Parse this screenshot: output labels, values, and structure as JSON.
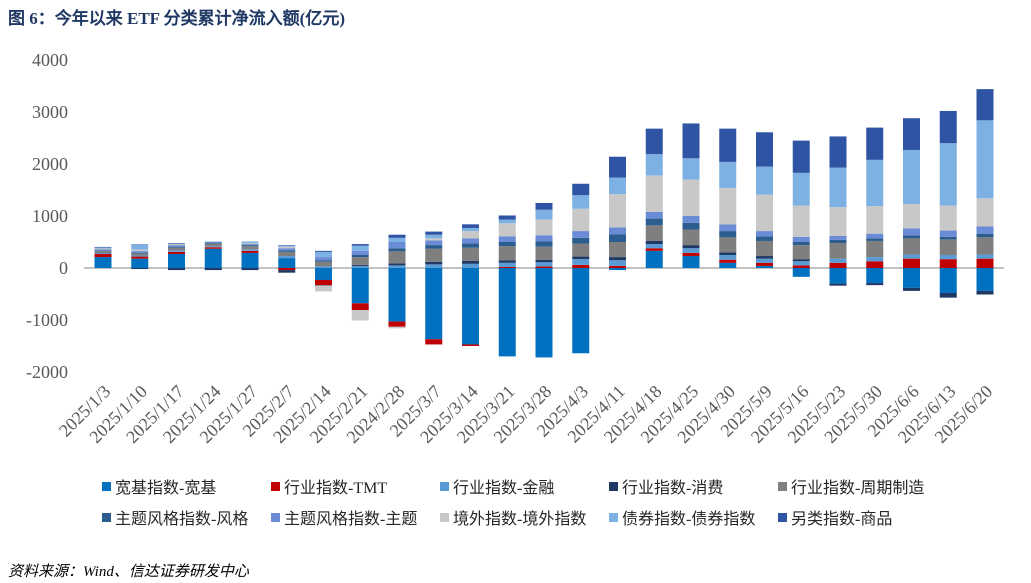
{
  "chart_data": {
    "type": "bar",
    "stacked": true,
    "title": "图 6：今年以来 ETF 分类累计净流入额(亿元)",
    "ylim": [
      -2000,
      4000
    ],
    "yticks": [
      4000,
      3000,
      2000,
      1000,
      0,
      -1000,
      -2000
    ],
    "grid": false,
    "legend_position": "bottom",
    "categories": [
      "2025/1/3",
      "2025/1/10",
      "2025/1/17",
      "2025/1/24",
      "2025/1/27",
      "2025/2/7",
      "2025/2/14",
      "2025/2/21",
      "2024/2/28",
      "2025/3/7",
      "2025/3/14",
      "2025/3/21",
      "2025/3/28",
      "2025/4/3",
      "2025/4/11",
      "2025/4/18",
      "2025/4/25",
      "2025/4/30",
      "2025/5/9",
      "2025/5/16",
      "2025/5/23",
      "2025/5/30",
      "2025/6/6",
      "2025/6/13",
      "2025/6/20"
    ],
    "series": [
      {
        "name": "宽基指数-宽基",
        "color": "#0070C0",
        "values": [
          210,
          180,
          270,
          370,
          290,
          190,
          -230,
          -680,
          -1030,
          -1370,
          -1470,
          -1700,
          -1720,
          -1640,
          -40,
          330,
          230,
          100,
          40,
          -170,
          -300,
          -290,
          -380,
          -480,
          -440
        ]
      },
      {
        "name": "行业指数-TMT",
        "color": "#C00000",
        "values": [
          60,
          40,
          40,
          30,
          40,
          -40,
          -100,
          -130,
          -100,
          -100,
          -30,
          20,
          30,
          60,
          40,
          50,
          60,
          60,
          60,
          50,
          100,
          130,
          180,
          170,
          180
        ]
      },
      {
        "name": "行业指数-金融",
        "color": "#5B9BD5",
        "values": [
          15,
          20,
          30,
          20,
          30,
          40,
          30,
          40,
          50,
          70,
          80,
          80,
          80,
          110,
          110,
          80,
          90,
          90,
          80,
          80,
          80,
          80,
          80,
          80,
          80
        ]
      },
      {
        "name": "行业指数-消费",
        "color": "#1F3864",
        "values": [
          10,
          -20,
          -40,
          -40,
          -40,
          -50,
          -10,
          20,
          40,
          50,
          60,
          50,
          50,
          50,
          60,
          60,
          60,
          50,
          50,
          40,
          -40,
          -40,
          -60,
          -90,
          -70
        ]
      },
      {
        "name": "行业指数-周期制造",
        "color": "#7F7F7F",
        "values": [
          30,
          40,
          50,
          50,
          60,
          80,
          90,
          150,
          230,
          250,
          250,
          270,
          250,
          250,
          290,
          300,
          300,
          290,
          290,
          270,
          300,
          310,
          310,
          300,
          330
        ]
      },
      {
        "name": "主题风格指数-风格",
        "color": "#2B5D8F",
        "values": [
          10,
          15,
          20,
          10,
          20,
          30,
          30,
          40,
          60,
          70,
          80,
          80,
          100,
          110,
          150,
          130,
          130,
          120,
          90,
          60,
          60,
          50,
          60,
          50,
          70
        ]
      },
      {
        "name": "主题风格指数-主题",
        "color": "#6A8BD6",
        "values": [
          20,
          30,
          30,
          20,
          20,
          40,
          60,
          80,
          120,
          90,
          100,
          110,
          120,
          130,
          130,
          130,
          130,
          130,
          100,
          100,
          80,
          90,
          130,
          120,
          140
        ]
      },
      {
        "name": "境外指数-境外指数",
        "color": "#C8C8C8",
        "values": [
          20,
          30,
          30,
          0,
          20,
          30,
          -110,
          -200,
          -30,
          40,
          140,
          250,
          300,
          430,
          640,
          700,
          700,
          700,
          700,
          600,
          550,
          530,
          470,
          480,
          540
        ]
      },
      {
        "name": "债券指数-债券指数",
        "color": "#7EB1E3",
        "values": [
          20,
          90,
          5,
          10,
          30,
          20,
          100,
          100,
          80,
          70,
          60,
          70,
          190,
          260,
          320,
          410,
          410,
          500,
          540,
          630,
          760,
          890,
          1040,
          1200,
          1500
        ]
      },
      {
        "name": "另类指数-商品",
        "color": "#2E54A3",
        "values": [
          10,
          10,
          5,
          0,
          0,
          10,
          20,
          30,
          60,
          60,
          70,
          80,
          130,
          220,
          400,
          490,
          670,
          640,
          660,
          620,
          600,
          620,
          610,
          620,
          600
        ]
      }
    ]
  },
  "footer": {
    "source": "资料来源：Wind、信达证券研发中心"
  }
}
